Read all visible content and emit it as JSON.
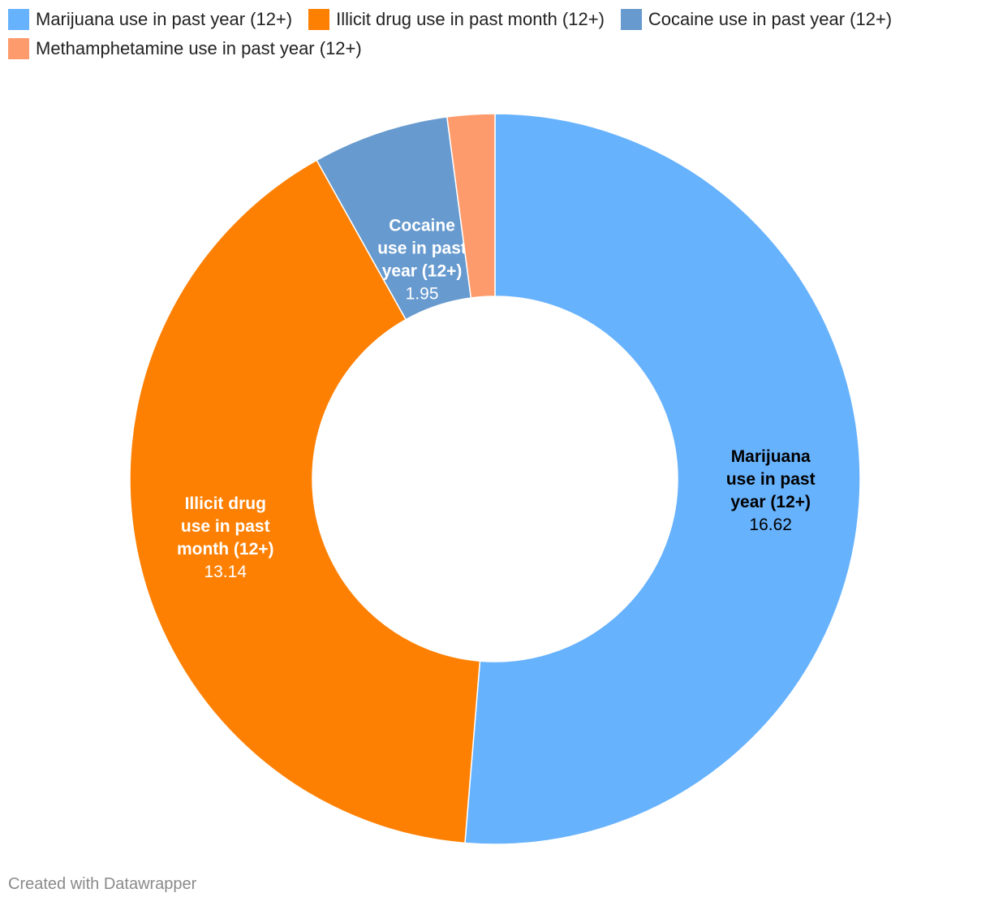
{
  "chart_data": {
    "type": "pie",
    "variant": "donut",
    "categories": [
      "Marijuana use in past year (12+)",
      "Illicit drug use in past month (12+)",
      "Cocaine use in past year (12+)",
      "Methamphetamine use in past year (12+)"
    ],
    "values": [
      16.62,
      13.14,
      1.95,
      0.68
    ],
    "colors": [
      "#67b2fd",
      "#fd8003",
      "#679ace",
      "#fd9b6c"
    ],
    "label_text_colors": [
      "#000000",
      "#ffffff",
      "#ffffff",
      "#ffffff"
    ],
    "slice_labels": [
      {
        "lines": [
          "Marijuana",
          "use in past",
          "year (12+)"
        ],
        "value": "16.62"
      },
      {
        "lines": [
          "Illicit drug",
          "use in past",
          "month (12+)"
        ],
        "value": "13.14"
      },
      {
        "lines": [
          "Cocaine",
          "use in past",
          "year (12+)"
        ],
        "value": "1.95"
      },
      null
    ],
    "legend_position": "top-left"
  },
  "footer": {
    "credit": "Created with Datawrapper"
  }
}
